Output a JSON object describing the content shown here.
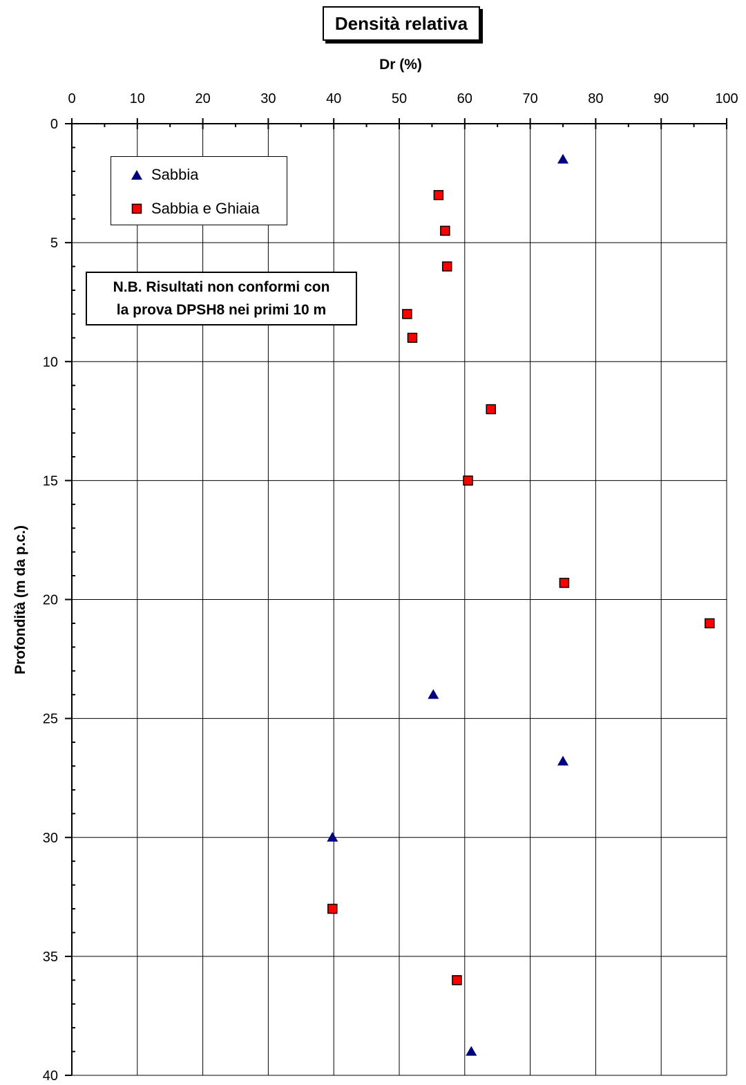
{
  "chart_data": {
    "type": "scatter",
    "title": "Densità relativa",
    "xlabel": "Dr (%)",
    "ylabel": "Profondità (m da p.c.)",
    "xlim": [
      0,
      100
    ],
    "ylim": [
      0,
      40
    ],
    "y_inverted": true,
    "x_axis_position": "top",
    "x_ticks": [
      0,
      10,
      20,
      30,
      40,
      50,
      60,
      70,
      80,
      90,
      100
    ],
    "y_ticks": [
      0,
      5,
      10,
      15,
      20,
      25,
      30,
      35,
      40
    ],
    "grid": true,
    "legend_position": "top-left",
    "series": [
      {
        "name": "Sabbia",
        "marker": "triangle",
        "color": "#000080",
        "points": [
          [
            75,
            1.5
          ],
          [
            55.2,
            24
          ],
          [
            75,
            26.8
          ],
          [
            39.8,
            30
          ],
          [
            61,
            39
          ]
        ]
      },
      {
        "name": "Sabbia e Ghiaia",
        "marker": "square",
        "color": "#ff0000",
        "points": [
          [
            56,
            3
          ],
          [
            57,
            4.5
          ],
          [
            57.3,
            6
          ],
          [
            51.2,
            8
          ],
          [
            52,
            9
          ],
          [
            64,
            12
          ],
          [
            60.5,
            15
          ],
          [
            75.2,
            19.3
          ],
          [
            97.4,
            21
          ],
          [
            39.8,
            33
          ],
          [
            58.8,
            36
          ]
        ]
      }
    ],
    "annotations": [
      "N.B. Risultati non conformi con",
      "la prova DPSH8 nei primi 10 m"
    ]
  }
}
